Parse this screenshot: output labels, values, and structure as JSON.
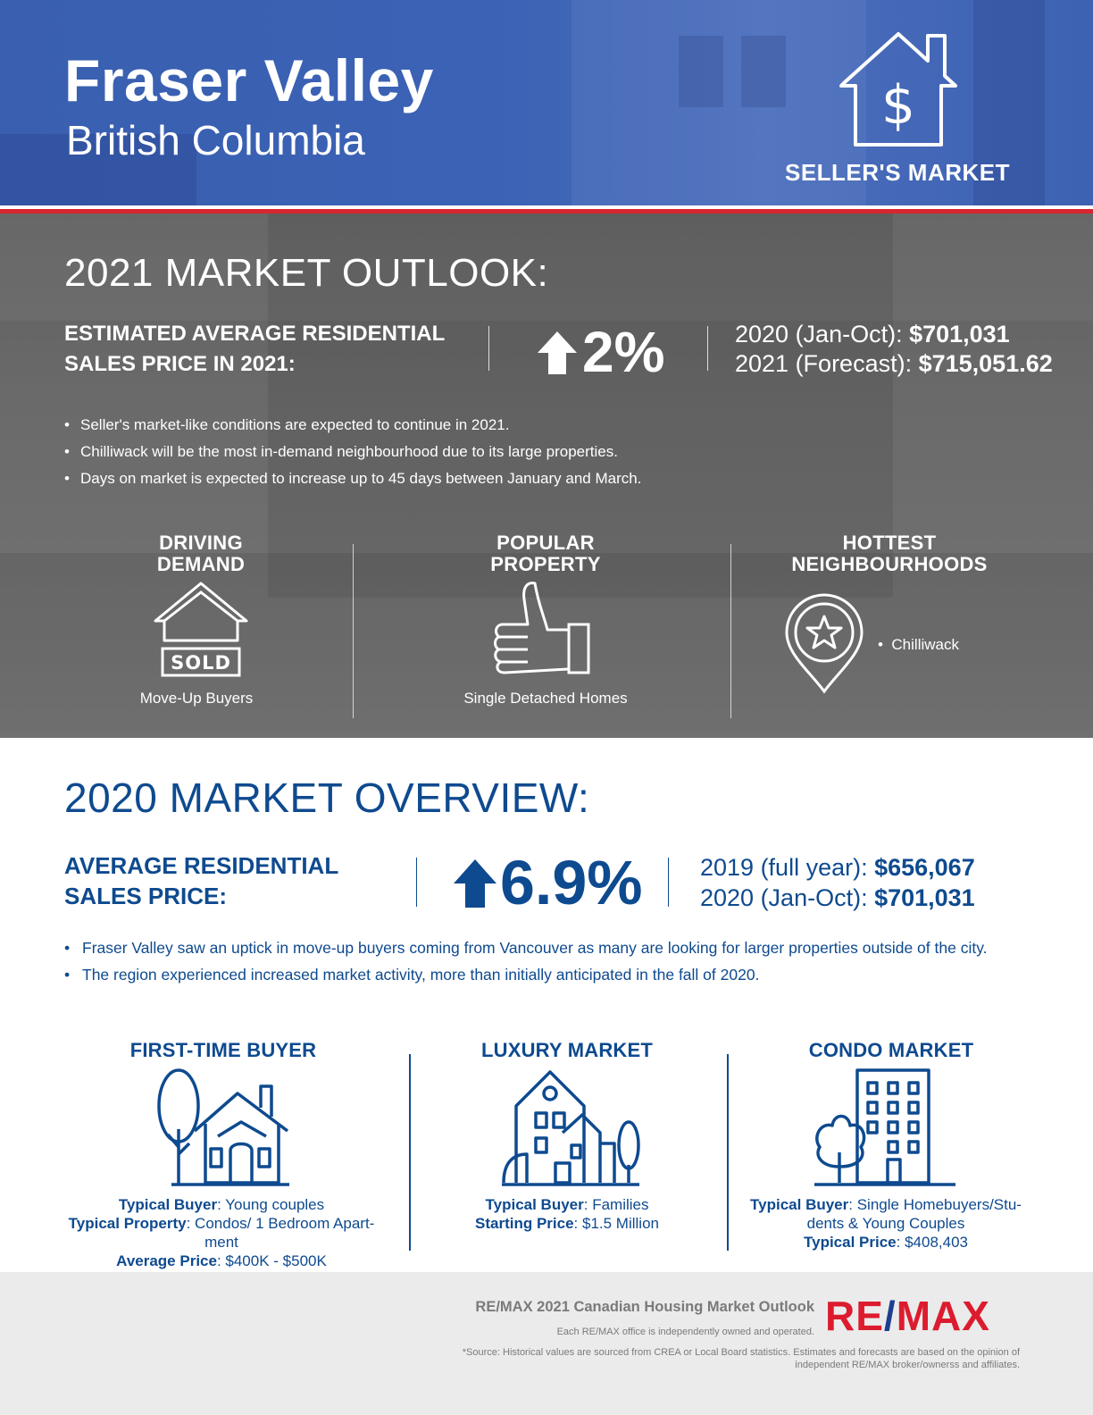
{
  "header": {
    "title": "Fraser Valley",
    "subtitle": "British Columbia",
    "market_label": "SELLER'S MARKET"
  },
  "outlook": {
    "heading": "2021 MARKET OUTLOOK:",
    "estimate_label": "ESTIMATED AVERAGE RESIDENTIAL SALES PRICE IN 2021:",
    "change": "2%",
    "line1_label": "2020 (Jan-Oct): ",
    "line1_value": "$701,031",
    "line2_label": "2021 (Forecast): ",
    "line2_value": "$715,051.62",
    "bullets": [
      "Seller's market-like conditions are expected to continue in 2021.",
      "Chilliwack will be the most in-demand neighbourhood due to its large properties.",
      "Days on market is expected to increase up to 45 days between January and March."
    ],
    "columns": [
      {
        "heading_1": "DRIVING",
        "heading_2": "DEMAND",
        "icon": "sold-house-icon",
        "caption": "Move-Up Buyers",
        "sold_text": "SOLD"
      },
      {
        "heading_1": "POPULAR",
        "heading_2": "PROPERTY",
        "icon": "thumbs-up-icon",
        "caption": "Single Detached Homes"
      },
      {
        "heading_1": "HOTTEST",
        "heading_2": "NEIGHBOURHOODS",
        "icon": "map-pin-star-icon",
        "caption": "Chilliwack"
      }
    ]
  },
  "overview": {
    "heading": "2020 MARKET OVERVIEW:",
    "label": "AVERAGE RESIDENTIAL SALES PRICE:",
    "change": "6.9%",
    "line1_label": "2019 (full year): ",
    "line1_value": "$656,067",
    "line2_label": "2020 (Jan-Oct): ",
    "line2_value": "$701,031",
    "bullets": [
      "Fraser Valley saw an uptick in move-up buyers coming from Vancouver as many are looking for larger properties outside of the city.",
      "The region experienced increased market activity, more than initially anticipated in the fall of 2020."
    ],
    "columns": [
      {
        "heading": "FIRST-TIME BUYER",
        "icon": "house-with-tree-icon",
        "rows": [
          {
            "label": "Typical Buyer",
            "value": ": Young couples"
          },
          {
            "label": "Typical Property",
            "value": ": Condos/ 1 Bedroom Apart-ment"
          },
          {
            "label": "Average Price",
            "value": ": $400K - $500K"
          }
        ]
      },
      {
        "heading": "LUXURY MARKET",
        "icon": "luxury-home-icon",
        "rows": [
          {
            "label": "Typical Buyer",
            "value": ": Families"
          },
          {
            "label": "Starting Price",
            "value": ": $1.5 Million"
          }
        ]
      },
      {
        "heading": "CONDO MARKET",
        "icon": "condo-building-icon",
        "rows": [
          {
            "label": "Typical Buyer",
            "value": ": Single Homebuyers/Stu-dents & Young Couples"
          },
          {
            "label": "Typical Price",
            "value": ": $408,403"
          }
        ]
      }
    ]
  },
  "footer": {
    "title": "RE/MAX 2021 Canadian Housing Market Outlook",
    "note": "Each RE/MAX office is independently owned and operated.",
    "source": "*Source: Historical values are sourced from CREA or Local Board statistics. Estimates and forecasts are based on the opinion of independent RE/MAX broker/ownerss and affiliates.",
    "logo_left": "RE",
    "logo_slash": "/",
    "logo_right": "MAX"
  },
  "colors": {
    "header_blue": "#3b62b5",
    "accent_red": "#d7262f",
    "text_blue": "#0e4a8f",
    "logo_red": "#dc1c2e"
  }
}
